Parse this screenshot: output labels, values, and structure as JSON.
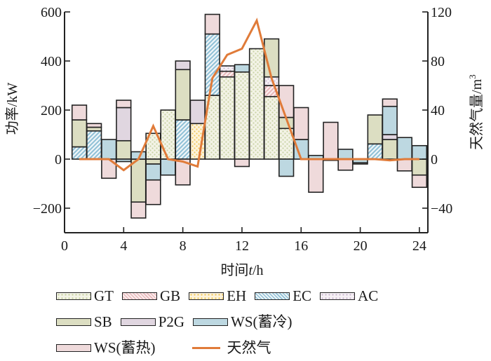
{
  "chart_data": {
    "type": "bar",
    "subtype": "stacked-bar-with-line",
    "title": "",
    "xlabel": "时间t/h",
    "ylabel": "功率/kW",
    "y2label": "天然气量/m",
    "y2label_sup": "3",
    "xlim": [
      0,
      24.6
    ],
    "ylim": [
      -300,
      600
    ],
    "y2lim": [
      -60,
      120
    ],
    "xticks": [
      "0",
      "4",
      "8",
      "12",
      "16",
      "20",
      "24"
    ],
    "xtick_values": [
      0,
      4,
      8,
      12,
      16,
      20,
      24
    ],
    "yticks": [
      "600",
      "400",
      "200",
      "0",
      "−200"
    ],
    "ytick_values": [
      600,
      400,
      200,
      0,
      -200
    ],
    "y2ticks": [
      "120",
      "80",
      "40",
      "0",
      "−40"
    ],
    "y2tick_values": [
      120,
      80,
      40,
      0,
      -40
    ],
    "grid": false,
    "legend_placement": "bottom",
    "hours": [
      1,
      2,
      3,
      4,
      5,
      6,
      7,
      8,
      9,
      10,
      11,
      12,
      13,
      14,
      15,
      16,
      17,
      18,
      19,
      20,
      21,
      22,
      23,
      24
    ],
    "series": [
      {
        "key": "GT",
        "name": "GT",
        "color": "#f3f3e6",
        "dot": "#c9d3a6",
        "pattern": "dots",
        "values": [
          0,
          0,
          0,
          0,
          0,
          105,
          200,
          0,
          0,
          260,
          335,
          355,
          450,
          255,
          125,
          0,
          0,
          0,
          0,
          0,
          0,
          0,
          0,
          0
        ]
      },
      {
        "key": "GB",
        "name": "GB",
        "color": "#fbeeee",
        "dot": "#e8b8bb",
        "pattern": "hatch",
        "values": [
          0,
          0,
          0,
          0,
          0,
          0,
          0,
          0,
          0,
          0,
          23,
          0,
          0,
          45,
          0,
          0,
          0,
          0,
          0,
          0,
          0,
          0,
          0,
          0
        ]
      },
      {
        "key": "EH",
        "name": "EH",
        "color": "#fdf3dc",
        "dot": "#f2c95e",
        "pattern": "dots",
        "values": [
          0,
          0,
          0,
          0,
          0,
          0,
          0,
          0,
          145,
          0,
          0,
          0,
          0,
          0,
          0,
          0,
          0,
          0,
          0,
          0,
          0,
          0,
          0,
          0
        ]
      },
      {
        "key": "EC",
        "name": "EC",
        "color": "#eef5f8",
        "dot": "#8fc0d6",
        "pattern": "hatch",
        "values": [
          50,
          115,
          0,
          0,
          0,
          0,
          0,
          160,
          0,
          250,
          0,
          0,
          0,
          0,
          0,
          0,
          0,
          0,
          0,
          0,
          62,
          0,
          0,
          0
        ]
      },
      {
        "key": "AC",
        "name": "AC",
        "color": "#f6f1f5",
        "dot": "#cdbcd3",
        "pattern": "dots",
        "values": [
          0,
          0,
          0,
          0,
          0,
          0,
          0,
          0,
          0,
          0,
          22,
          0,
          0,
          35,
          0,
          0,
          0,
          0,
          0,
          0,
          0,
          0,
          0,
          0
        ]
      },
      {
        "key": "SB",
        "name": "SB",
        "color": "#dcdec2",
        "pattern": "solid",
        "values": [
          110,
          15,
          0,
          75,
          -175,
          -20,
          0,
          205,
          0,
          0,
          0,
          0,
          0,
          155,
          45,
          0,
          0,
          0,
          0,
          0,
          118,
          80,
          0,
          -65
        ]
      },
      {
        "key": "P2G",
        "name": "P2G",
        "color": "#e0d6e0",
        "pattern": "solid",
        "values": [
          0,
          0,
          0,
          135,
          0,
          0,
          0,
          35,
          95,
          0,
          0,
          0,
          0,
          0,
          0,
          0,
          0,
          0,
          0,
          0,
          0,
          20,
          0,
          0
        ]
      },
      {
        "key": "WSC",
        "name": "WS(蓄冷)",
        "color": "#bdd8e1",
        "pattern": "solid",
        "values": [
          0,
          0,
          80,
          -10,
          30,
          -65,
          -65,
          0,
          0,
          0,
          0,
          30,
          0,
          0,
          -70,
          80,
          15,
          -5,
          40,
          -15,
          0,
          115,
          88,
          55
        ]
      },
      {
        "key": "WSH",
        "name": "WS(蓄热)",
        "color": "#efdadb",
        "pattern": "solid",
        "values": [
          60,
          15,
          -78,
          30,
          -65,
          -100,
          0,
          -105,
          0,
          80,
          0,
          -30,
          0,
          0,
          130,
          130,
          -135,
          150,
          -45,
          -5,
          0,
          30,
          -48,
          -50
        ]
      }
    ],
    "line_series": {
      "name": "天然气",
      "color": "#e07b39",
      "axis": "right",
      "values": [
        0,
        0,
        0,
        -9,
        0,
        27,
        0,
        -2,
        -6,
        66,
        85,
        90,
        113,
        66,
        33,
        0,
        0,
        0,
        0,
        0,
        0,
        -1,
        0,
        0
      ]
    }
  }
}
